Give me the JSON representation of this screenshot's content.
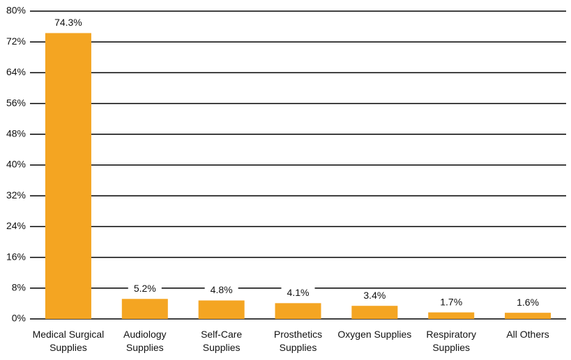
{
  "chart_data": {
    "type": "bar",
    "categories": [
      "Medical Surgical Supplies",
      "Audiology Supplies",
      "Self-Care Supplies",
      "Prosthetics Supplies",
      "Oxygen Supplies",
      "Respiratory Supplies",
      "All Others"
    ],
    "values": [
      74.3,
      5.2,
      4.8,
      4.1,
      3.4,
      1.7,
      1.6
    ],
    "value_labels": [
      "74.3%",
      "5.2%",
      "4.8%",
      "4.1%",
      "3.4%",
      "1.7%",
      "1.6%"
    ],
    "color": "#f4a522",
    "ylim": [
      0,
      80
    ],
    "yticks": [
      {
        "value": 0,
        "label": "0%"
      },
      {
        "value": 8,
        "label": "8%"
      },
      {
        "value": 16,
        "label": "16%"
      },
      {
        "value": 24,
        "label": "24%"
      },
      {
        "value": 32,
        "label": "32%"
      },
      {
        "value": 40,
        "label": "40%"
      },
      {
        "value": 48,
        "label": "48%"
      },
      {
        "value": 56,
        "label": "56%"
      },
      {
        "value": 64,
        "label": "64%"
      },
      {
        "value": 72,
        "label": "72%"
      },
      {
        "value": 80,
        "label": "80%"
      }
    ],
    "grid": true
  }
}
